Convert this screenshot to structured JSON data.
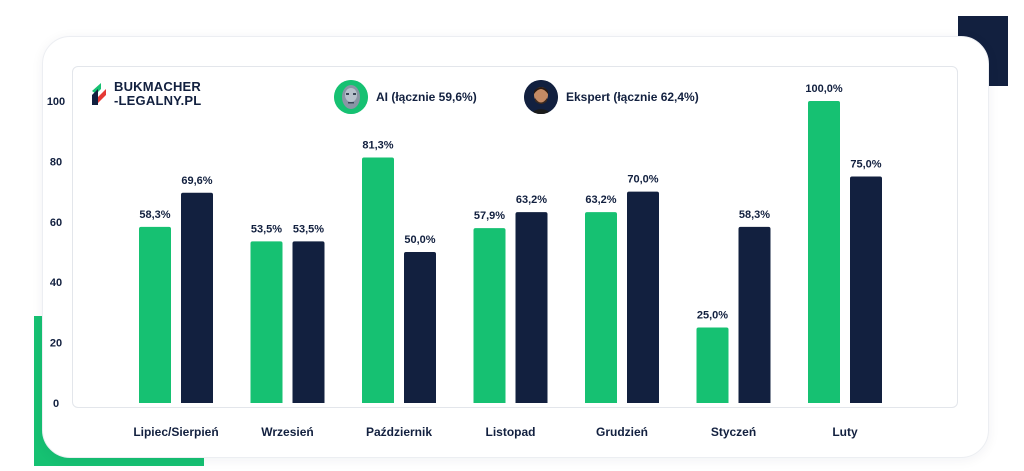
{
  "brand": {
    "line1": "BUKMACHER",
    "line2": "-LEGALNY.PL"
  },
  "legend": {
    "ai_label": "AI (łącznie 59,6%)",
    "expert_label": "Ekspert (łącznie 62,4%)"
  },
  "colors": {
    "ai": "#16c172",
    "expert": "#12203f",
    "text": "#12203f",
    "gridline": "#e3e6eb"
  },
  "chart_data": {
    "type": "bar",
    "title": "",
    "xlabel": "",
    "ylabel": "",
    "ylim": [
      0,
      100
    ],
    "yticks": [
      0,
      20,
      40,
      60,
      80,
      100
    ],
    "categories": [
      "Lipiec/Sierpień",
      "Wrzesień",
      "Październik",
      "Listopad",
      "Grudzień",
      "Styczeń",
      "Luty"
    ],
    "series": [
      {
        "name": "AI (łącznie 59,6%)",
        "color": "#16c172",
        "values": [
          58.3,
          53.5,
          81.3,
          57.9,
          63.2,
          25.0,
          100.0
        ],
        "labels": [
          "58,3%",
          "53,5%",
          "81,3%",
          "57,9%",
          "63,2%",
          "25,0%",
          "100,0%"
        ]
      },
      {
        "name": "Ekspert (łącznie 62,4%)",
        "color": "#12203f",
        "values": [
          69.6,
          53.5,
          50.0,
          63.2,
          70.0,
          58.3,
          75.0
        ],
        "labels": [
          "69,6%",
          "53,5%",
          "50,0%",
          "63,2%",
          "70,0%",
          "58,3%",
          "75,0%"
        ]
      }
    ]
  }
}
